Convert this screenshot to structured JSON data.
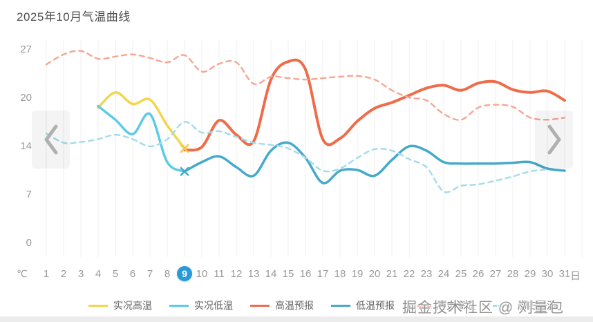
{
  "title": "2025年10月气温曲线",
  "watermark": "掘金技术社区 @ 刘量包",
  "selected_day": 9,
  "colors": {
    "selected_day_badge": "#2a9ad7",
    "axis_label": "#999999",
    "grid_line": "#efefef",
    "title_text": "#4e4e4e"
  },
  "chart_data": {
    "type": "line",
    "title": "2025年10月气温曲线",
    "x": [
      1,
      2,
      3,
      4,
      5,
      6,
      7,
      8,
      9,
      10,
      11,
      12,
      13,
      14,
      15,
      16,
      17,
      18,
      19,
      20,
      21,
      22,
      23,
      24,
      25,
      26,
      27,
      28,
      29,
      30,
      31
    ],
    "x_unit_label": "℃",
    "x_last_suffix": "日",
    "ylim": [
      0,
      27
    ],
    "y_ticks": [
      {
        "label": "27",
        "value": 27
      },
      {
        "label": "20",
        "value": 20.25
      },
      {
        "label": "14",
        "value": 13.5
      },
      {
        "label": "7",
        "value": 6.75
      },
      {
        "label": "0",
        "value": 0
      }
    ],
    "grid": "vertical-only",
    "legend_position": "bottom",
    "series": [
      {
        "name": "实况高温",
        "color": "#f6d44b",
        "style": "solid",
        "width": 3.5,
        "points": [
          [
            4,
            18.9
          ],
          [
            5,
            21.0
          ],
          [
            6,
            19.4
          ],
          [
            7,
            20.0
          ],
          [
            8,
            16.4
          ],
          [
            9,
            13.2
          ]
        ]
      },
      {
        "name": "实况低温",
        "color": "#5bcbe8",
        "style": "solid",
        "width": 3.5,
        "points": [
          [
            4,
            19.1
          ],
          [
            5,
            17.2
          ],
          [
            6,
            15.2
          ],
          [
            7,
            18.0
          ],
          [
            8,
            11.3
          ],
          [
            9,
            10.0
          ]
        ]
      },
      {
        "name": "高温预报",
        "color": "#ee6c4a",
        "style": "solid",
        "width": 4,
        "points": [
          [
            9,
            13.0
          ],
          [
            10,
            13.4
          ],
          [
            11,
            17.1
          ],
          [
            12,
            15.1
          ],
          [
            13,
            14.2
          ],
          [
            14,
            22.8
          ],
          [
            15,
            25.3
          ],
          [
            16,
            24.2
          ],
          [
            17,
            14.5
          ],
          [
            18,
            14.6
          ],
          [
            19,
            17.0
          ],
          [
            20,
            18.8
          ],
          [
            21,
            19.6
          ],
          [
            22,
            20.6
          ],
          [
            23,
            21.6
          ],
          [
            24,
            22.0
          ],
          [
            25,
            21.3
          ],
          [
            26,
            22.3
          ],
          [
            27,
            22.5
          ],
          [
            28,
            21.4
          ],
          [
            29,
            21.0
          ],
          [
            30,
            21.2
          ],
          [
            31,
            19.9
          ]
        ]
      },
      {
        "name": "低温预报",
        "color": "#45a9ca",
        "style": "solid",
        "width": 3.5,
        "points": [
          [
            9,
            10.0
          ],
          [
            10,
            11.3
          ],
          [
            11,
            12.1
          ],
          [
            12,
            10.6
          ],
          [
            13,
            9.4
          ],
          [
            14,
            12.9
          ],
          [
            15,
            14.0
          ],
          [
            16,
            11.9
          ],
          [
            17,
            8.4
          ],
          [
            18,
            10.1
          ],
          [
            19,
            10.2
          ],
          [
            20,
            9.4
          ],
          [
            21,
            11.6
          ],
          [
            22,
            13.5
          ],
          [
            23,
            12.9
          ],
          [
            24,
            11.3
          ],
          [
            25,
            11.1
          ],
          [
            26,
            11.1
          ],
          [
            27,
            11.1
          ],
          [
            28,
            11.2
          ],
          [
            29,
            11.3
          ],
          [
            30,
            10.4
          ],
          [
            31,
            10.1
          ]
        ]
      },
      {
        "name": "历史高温",
        "color": "#f8a795",
        "style": "dashed",
        "width": 2.5,
        "points": [
          [
            1,
            24.9
          ],
          [
            2,
            26.3
          ],
          [
            3,
            26.8
          ],
          [
            4,
            25.7
          ],
          [
            5,
            26.0
          ],
          [
            6,
            26.3
          ],
          [
            7,
            25.8
          ],
          [
            8,
            25.2
          ],
          [
            9,
            26.2
          ],
          [
            10,
            23.9
          ],
          [
            11,
            25.0
          ],
          [
            12,
            25.2
          ],
          [
            13,
            22.2
          ],
          [
            14,
            23.2
          ],
          [
            15,
            23.0
          ],
          [
            16,
            22.8
          ],
          [
            17,
            23.0
          ],
          [
            18,
            23.2
          ],
          [
            19,
            23.3
          ],
          [
            20,
            22.8
          ],
          [
            21,
            21.3
          ],
          [
            22,
            20.3
          ],
          [
            23,
            19.9
          ],
          [
            24,
            18.0
          ],
          [
            25,
            17.2
          ],
          [
            26,
            18.9
          ],
          [
            27,
            19.3
          ],
          [
            28,
            19.0
          ],
          [
            29,
            17.5
          ],
          [
            30,
            17.2
          ],
          [
            31,
            17.5
          ]
        ]
      },
      {
        "name": "历史低温",
        "color": "#a5dcea",
        "style": "dashed",
        "width": 2.5,
        "points": [
          [
            1,
            15.3
          ],
          [
            2,
            14.0
          ],
          [
            3,
            14.1
          ],
          [
            4,
            14.5
          ],
          [
            5,
            15.1
          ],
          [
            6,
            14.5
          ],
          [
            7,
            13.5
          ],
          [
            8,
            14.5
          ],
          [
            9,
            16.9
          ],
          [
            10,
            15.4
          ],
          [
            11,
            15.6
          ],
          [
            12,
            14.8
          ],
          [
            13,
            14.0
          ],
          [
            14,
            13.7
          ],
          [
            15,
            13.2
          ],
          [
            16,
            11.9
          ],
          [
            17,
            10.1
          ],
          [
            18,
            10.4
          ],
          [
            19,
            11.9
          ],
          [
            20,
            13.1
          ],
          [
            21,
            12.9
          ],
          [
            22,
            11.7
          ],
          [
            23,
            10.6
          ],
          [
            24,
            7.2
          ],
          [
            25,
            8.0
          ],
          [
            26,
            8.2
          ],
          [
            27,
            8.7
          ],
          [
            28,
            9.3
          ],
          [
            29,
            10.0
          ],
          [
            30,
            10.3
          ]
        ]
      }
    ],
    "markers": [
      {
        "day": 9,
        "value": 13.2,
        "shape": "x",
        "color": "#f3c840"
      },
      {
        "day": 9,
        "value": 10.0,
        "shape": "x",
        "color": "#45a9ca"
      }
    ]
  }
}
